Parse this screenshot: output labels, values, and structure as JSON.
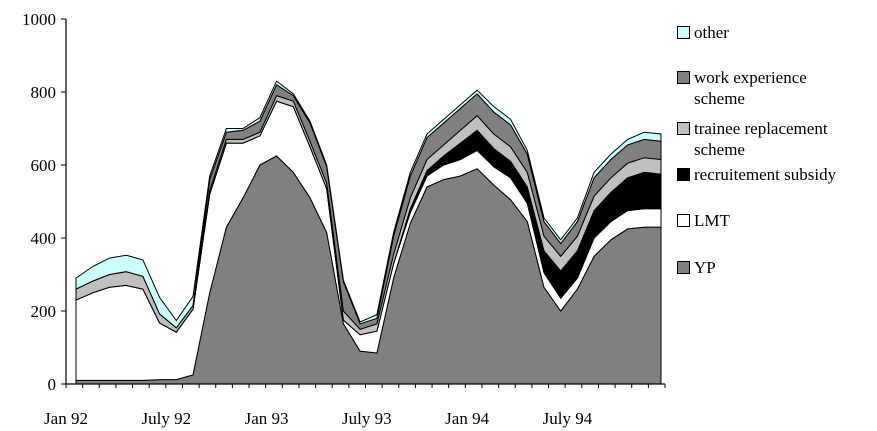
{
  "chart_data": {
    "type": "area",
    "stacked": true,
    "title": "",
    "xlabel": "",
    "ylabel": "",
    "ylim": [
      0,
      1000
    ],
    "yticks": [
      0,
      200,
      400,
      600,
      800,
      1000
    ],
    "x_tick_labels": [
      "Jan 92",
      "July 92",
      "Jan 93",
      "July 93",
      "Jan 94",
      "July 94"
    ],
    "x_tick_indices": [
      0,
      6,
      12,
      18,
      24,
      30
    ],
    "x": [
      "Jan 92",
      "Feb 92",
      "Mar 92",
      "Apr 92",
      "May 92",
      "Jun 92",
      "July 92",
      "Aug 92",
      "Sep 92",
      "Oct 92",
      "Nov 92",
      "Dec 92",
      "Jan 93",
      "Feb 93",
      "Mar 93",
      "Apr 93",
      "May 93",
      "Jun 93",
      "July 93",
      "Aug 93",
      "Sep 93",
      "Oct 93",
      "Nov 93",
      "Dec 93",
      "Jan 94",
      "Feb 94",
      "Mar 94",
      "Apr 94",
      "May 94",
      "Jun 94",
      "July 94",
      "Aug 94",
      "Sep 94",
      "Oct 94",
      "Nov 94",
      "Dec 94"
    ],
    "grid": false,
    "legend_position": "right",
    "series": [
      {
        "name": "YP",
        "color": "#808080",
        "values": [
          10,
          10,
          10,
          10,
          10,
          12,
          12,
          25,
          250,
          430,
          510,
          600,
          625,
          580,
          510,
          415,
          165,
          90,
          85,
          290,
          440,
          540,
          560,
          570,
          590,
          545,
          505,
          445,
          265,
          200,
          260,
          350,
          395,
          425,
          430,
          430
        ]
      },
      {
        "name": "LMT",
        "color": "#ffffff",
        "values": [
          220,
          240,
          255,
          260,
          250,
          155,
          130,
          180,
          270,
          230,
          150,
          80,
          150,
          180,
          140,
          120,
          10,
          45,
          60,
          40,
          30,
          30,
          40,
          45,
          50,
          50,
          60,
          50,
          40,
          35,
          30,
          50,
          50,
          50,
          50,
          50
        ]
      },
      {
        "name": "recruitement subsidy",
        "color": "#000000",
        "values": [
          0,
          0,
          0,
          0,
          0,
          0,
          0,
          0,
          0,
          0,
          0,
          0,
          0,
          0,
          0,
          0,
          0,
          0,
          0,
          0,
          10,
          15,
          25,
          45,
          55,
          50,
          45,
          45,
          60,
          75,
          75,
          75,
          80,
          90,
          100,
          95
        ]
      },
      {
        "name": "trainee replacement scheme",
        "color": "#c0c0c0",
        "values": [
          30,
          32,
          35,
          38,
          35,
          25,
          12,
          10,
          10,
          10,
          10,
          10,
          15,
          15,
          15,
          15,
          25,
          15,
          20,
          25,
          30,
          30,
          30,
          35,
          40,
          40,
          40,
          40,
          40,
          40,
          40,
          40,
          40,
          40,
          40,
          40
        ]
      },
      {
        "name": "work experience scheme",
        "color": "#808080",
        "values": [
          0,
          0,
          0,
          0,
          0,
          0,
          0,
          0,
          30,
          20,
          25,
          30,
          30,
          15,
          50,
          45,
          80,
          15,
          15,
          50,
          60,
          60,
          60,
          60,
          60,
          60,
          60,
          50,
          40,
          35,
          40,
          50,
          50,
          50,
          50,
          50
        ]
      },
      {
        "name": "other",
        "color": "#ccffff",
        "values": [
          30,
          40,
          45,
          45,
          45,
          45,
          20,
          25,
          10,
          10,
          5,
          10,
          10,
          5,
          5,
          5,
          5,
          5,
          10,
          10,
          10,
          10,
          10,
          10,
          10,
          15,
          15,
          10,
          10,
          10,
          10,
          15,
          15,
          15,
          20,
          20
        ]
      }
    ]
  },
  "legend_order": [
    "other",
    "work experience scheme",
    "trainee replacement scheme",
    "recruitement subsidy",
    "LMT",
    "YP"
  ],
  "legend_labels": {
    "other": "other",
    "work_experience": "work experience\nscheme",
    "trainee_replacement": "trainee replacement\nscheme",
    "recruitement_subsidy": "recruitement subsidy",
    "lmt": "LMT",
    "yp": "YP"
  }
}
